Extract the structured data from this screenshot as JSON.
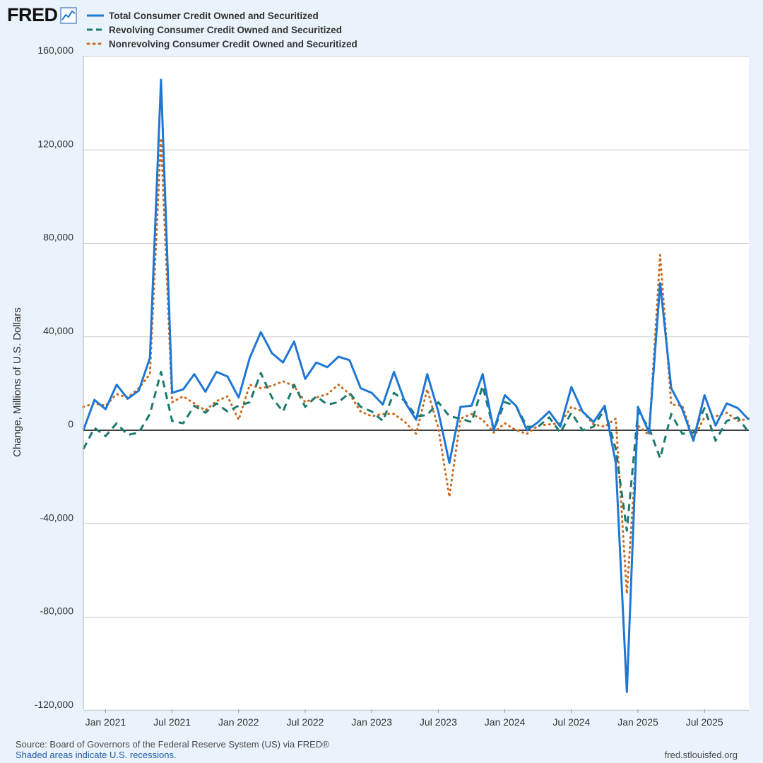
{
  "header": {
    "logo_text": "FRED"
  },
  "colors": {
    "total": "#1f77d4",
    "revolving": "#1b7a6e",
    "nonrevolving": "#c96a1f"
  },
  "footer": {
    "source": "Source: Board of Governors of the Federal Reserve System (US) via FRED®",
    "note": "Shaded areas indicate U.S. recessions.",
    "url": "fred.stlouisfed.org"
  },
  "chart_data": {
    "type": "line",
    "title": "",
    "ylabel": "Change, Millions of U.S. Dollars",
    "xlabel": "",
    "ylim": [
      -120000,
      160000
    ],
    "yticks": [
      160000,
      120000,
      80000,
      40000,
      0,
      -40000,
      -80000,
      -120000
    ],
    "ytick_labels": [
      "160,000",
      "120,000",
      "80,000",
      "40,000",
      "0",
      "-40,000",
      "-80,000",
      "-120,000"
    ],
    "xticks": [
      {
        "label": "Jan 2021",
        "index": 2
      },
      {
        "label": "Jul 2021",
        "index": 8
      },
      {
        "label": "Jan 2022",
        "index": 14
      },
      {
        "label": "Jul 2022",
        "index": 20
      },
      {
        "label": "Jan 2023",
        "index": 26
      },
      {
        "label": "Jul 2023",
        "index": 32
      },
      {
        "label": "Jan 2024",
        "index": 38
      },
      {
        "label": "Jul 2024",
        "index": 44
      },
      {
        "label": "Jan 2025",
        "index": 50
      },
      {
        "label": "Jul 2025",
        "index": 56
      }
    ],
    "x_start": "Nov 2020",
    "legend_position": "top-left",
    "grid": true,
    "series": [
      {
        "name": "Total Consumer Credit Owned and Securitized",
        "style": "solid",
        "values": [
          0,
          13000,
          9000,
          19500,
          13500,
          17000,
          31000,
          150000,
          16000,
          17500,
          24000,
          16500,
          25000,
          23000,
          14000,
          31000,
          42000,
          33000,
          29000,
          38000,
          22000,
          29000,
          27000,
          31500,
          30000,
          18000,
          16000,
          11000,
          25000,
          12000,
          4500,
          24000,
          8000,
          -14000,
          10000,
          10500,
          24000,
          0,
          15000,
          10500,
          0,
          3500,
          8000,
          1500,
          18500,
          8000,
          3500,
          10500,
          -14000,
          -112000,
          10000,
          -1000,
          63000,
          18000,
          9000,
          -4500,
          15000,
          2000,
          11500,
          9500,
          4500
        ]
      },
      {
        "name": "Revolving Consumer Credit Owned and Securitized",
        "style": "dashed",
        "values": [
          -8000,
          1000,
          -2500,
          3000,
          -2000,
          -1000,
          7000,
          25000,
          4000,
          3000,
          10500,
          7500,
          11500,
          8000,
          10500,
          12000,
          24500,
          14000,
          8000,
          19500,
          10000,
          14500,
          11000,
          12000,
          16000,
          10000,
          8000,
          4000,
          16000,
          12500,
          6000,
          6500,
          12000,
          6000,
          5000,
          3500,
          19000,
          0,
          12000,
          10500,
          1500,
          1500,
          5500,
          -1000,
          7500,
          0,
          1500,
          9000,
          -8000,
          -43000,
          8000,
          1000,
          -12000,
          7000,
          -1500,
          -1000,
          9500,
          -4500,
          4000,
          5500,
          -1000
        ]
      },
      {
        "name": "Nonrevolving Consumer Credit Owned and Securitized",
        "style": "dotted",
        "values": [
          10000,
          11500,
          10500,
          15500,
          14000,
          18000,
          24000,
          125000,
          12000,
          14500,
          11500,
          8500,
          12500,
          14500,
          4500,
          19500,
          18000,
          19000,
          21000,
          19000,
          12000,
          14000,
          15500,
          19500,
          15500,
          8000,
          6000,
          7000,
          7000,
          3500,
          -1500,
          17500,
          1000,
          -28500,
          5000,
          7000,
          4500,
          -1000,
          3000,
          0,
          -1500,
          2000,
          2500,
          3000,
          10000,
          8000,
          2500,
          1500,
          5000,
          -70000,
          2000,
          -2000,
          75000,
          11000,
          10500,
          -3500,
          5500,
          6000,
          7500,
          4000,
          5000
        ]
      }
    ]
  }
}
